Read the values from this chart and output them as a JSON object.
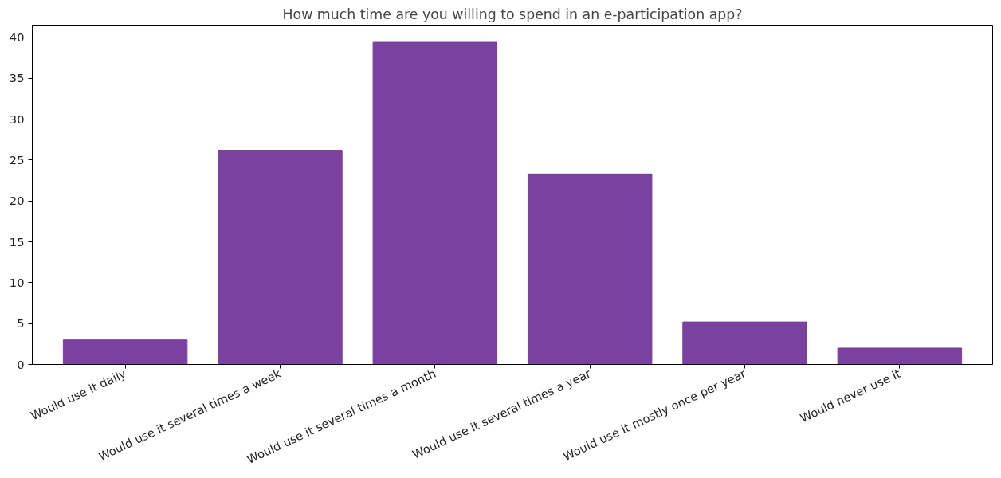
{
  "chart_data": {
    "type": "bar",
    "title": "How much time are you willing to spend in an e-participation app?",
    "categories": [
      "Would use it daily",
      "Would use it several times a week",
      "Would use it several times a month",
      "Would use it several times a year",
      "Would use it mostly once per year",
      "Would never use it"
    ],
    "values": [
      3.0,
      26.2,
      39.4,
      23.3,
      5.2,
      2.0
    ],
    "color": "#7a41a0",
    "ylim": [
      0,
      41.4
    ],
    "yticks": [
      0,
      5,
      10,
      15,
      20,
      25,
      30,
      35,
      40
    ],
    "grid": false
  }
}
